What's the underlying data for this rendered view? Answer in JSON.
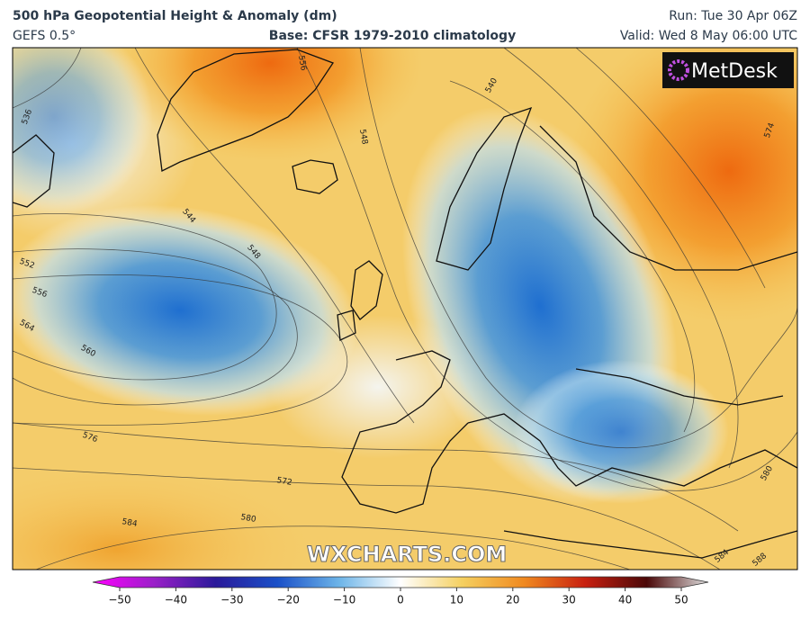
{
  "header": {
    "title": "500 hPa Geopotential Height & Anomaly (dm)",
    "model": "GEFS 0.5°",
    "base": "Base: CFSR 1979-2010 climatology",
    "run": "Run: Tue 30 Apr 06Z",
    "valid": "Valid: Wed 8 May 06:00 UTC"
  },
  "logo": "MetDesk",
  "watermark": "WXCHARTS.COM",
  "contour_labels": [
    "536",
    "556",
    "548",
    "540",
    "544",
    "548",
    "552",
    "556",
    "564",
    "560",
    "576",
    "572",
    "580",
    "584",
    "584",
    "588",
    "580",
    "574"
  ],
  "colorbar": {
    "ticks": [
      "−50",
      "−40",
      "−30",
      "−20",
      "−10",
      "0",
      "10",
      "20",
      "30",
      "40",
      "50"
    ]
  }
}
